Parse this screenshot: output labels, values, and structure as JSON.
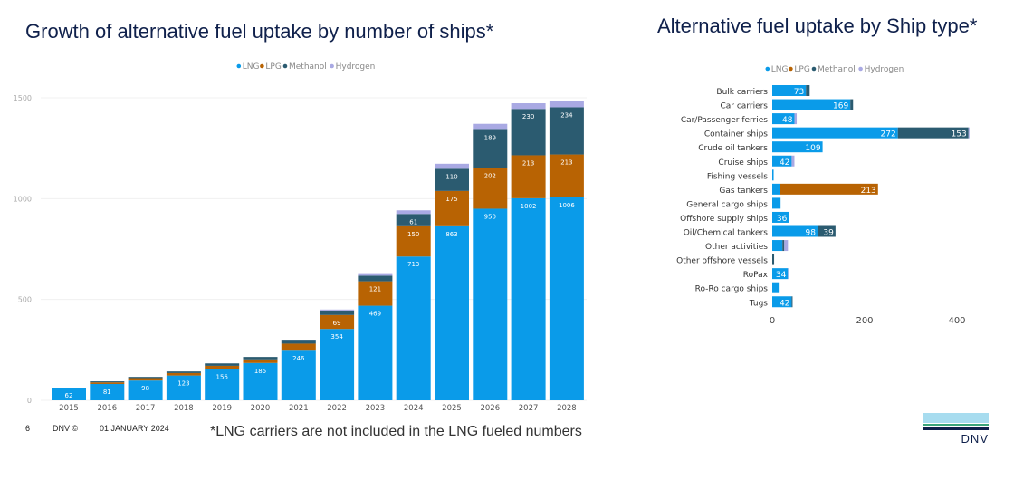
{
  "colors": {
    "LNG": "#0a9be9",
    "LPG": "#b86303",
    "Methanol": "#2b5b70",
    "Hydrogen": "#a9a9e3"
  },
  "footer": {
    "page": "6",
    "brand": "DNV ©",
    "date": "01 JANUARY 2024",
    "note": "*LNG carriers are not included in the LNG fueled numbers"
  },
  "logo": {
    "text": "DNV"
  },
  "chart_data": [
    {
      "type": "bar",
      "stacked": true,
      "title": "Growth of alternative fuel uptake by number of ships*",
      "legend": [
        "LNG",
        "LPG",
        "Methanol",
        "Hydrogen"
      ],
      "legend_position": "top-center",
      "categories": [
        "2015",
        "2016",
        "2017",
        "2018",
        "2019",
        "2020",
        "2021",
        "2022",
        "2023",
        "2024",
        "2025",
        "2026",
        "2027",
        "2028"
      ],
      "series": [
        {
          "name": "LNG",
          "values": [
            62,
            81,
            98,
            123,
            156,
            185,
            246,
            354,
            469,
            713,
            863,
            950,
            1002,
            1006
          ],
          "labels": [
            62,
            81,
            98,
            123,
            156,
            185,
            246,
            354,
            469,
            713,
            863,
            950,
            1002,
            1006
          ]
        },
        {
          "name": "LPG",
          "values": [
            0,
            8,
            12,
            12,
            15,
            18,
            35,
            69,
            121,
            150,
            175,
            202,
            213,
            213
          ],
          "labels": [
            null,
            null,
            null,
            null,
            null,
            null,
            null,
            69,
            121,
            150,
            175,
            202,
            213,
            213
          ]
        },
        {
          "name": "Methanol",
          "values": [
            0,
            5,
            6,
            8,
            12,
            12,
            15,
            22,
            28,
            61,
            110,
            189,
            230,
            234
          ],
          "labels": [
            null,
            null,
            null,
            null,
            null,
            null,
            null,
            null,
            null,
            61,
            110,
            189,
            230,
            234
          ]
        },
        {
          "name": "Hydrogen",
          "values": [
            0,
            0,
            0,
            0,
            0,
            0,
            2,
            5,
            8,
            18,
            25,
            30,
            28,
            30
          ]
        }
      ],
      "yticks": [
        0,
        500,
        1000,
        1500
      ],
      "ylim": [
        0,
        1500
      ],
      "grid": true
    },
    {
      "type": "bar",
      "orientation": "horizontal",
      "stacked": true,
      "title": "Alternative fuel uptake by Ship type*",
      "legend": [
        "LNG",
        "LPG",
        "Methanol",
        "Hydrogen"
      ],
      "legend_position": "top-center",
      "categories": [
        "Bulk carriers",
        "Car carriers",
        "Car/Passenger ferries",
        "Container ships",
        "Crude oil tankers",
        "Cruise ships",
        "Fishing vessels",
        "Gas tankers",
        "General cargo ships",
        "Offshore supply ships",
        "Oil/Chemical tankers",
        "Other activities",
        "Other offshore vessels",
        "RoPax",
        "Ro-Ro cargo ships",
        "Tugs"
      ],
      "series": [
        {
          "name": "LNG",
          "values": [
            73,
            169,
            48,
            272,
            109,
            42,
            3,
            16,
            18,
            36,
            98,
            22,
            0,
            34,
            14,
            42
          ],
          "labels": [
            73,
            169,
            48,
            272,
            109,
            42,
            null,
            null,
            null,
            36,
            98,
            null,
            null,
            34,
            null,
            42
          ]
        },
        {
          "name": "LPG",
          "values": [
            0,
            0,
            0,
            0,
            0,
            0,
            0,
            213,
            0,
            0,
            0,
            0,
            0,
            0,
            0,
            0
          ],
          "labels": [
            null,
            null,
            null,
            null,
            null,
            null,
            null,
            213,
            null,
            null,
            null,
            null,
            null,
            null,
            null,
            null
          ]
        },
        {
          "name": "Methanol",
          "values": [
            8,
            6,
            0,
            153,
            0,
            0,
            0,
            0,
            0,
            0,
            39,
            4,
            4,
            0,
            0,
            2
          ],
          "labels": [
            null,
            null,
            null,
            153,
            null,
            null,
            null,
            null,
            null,
            null,
            39,
            null,
            null,
            null,
            null,
            null
          ]
        },
        {
          "name": "Hydrogen",
          "values": [
            0,
            0,
            5,
            2,
            0,
            6,
            0,
            0,
            0,
            0,
            0,
            8,
            0,
            1,
            0,
            0
          ]
        }
      ],
      "xticks": [
        0,
        200,
        400
      ],
      "xlim": [
        0,
        440
      ],
      "grid": false
    }
  ]
}
